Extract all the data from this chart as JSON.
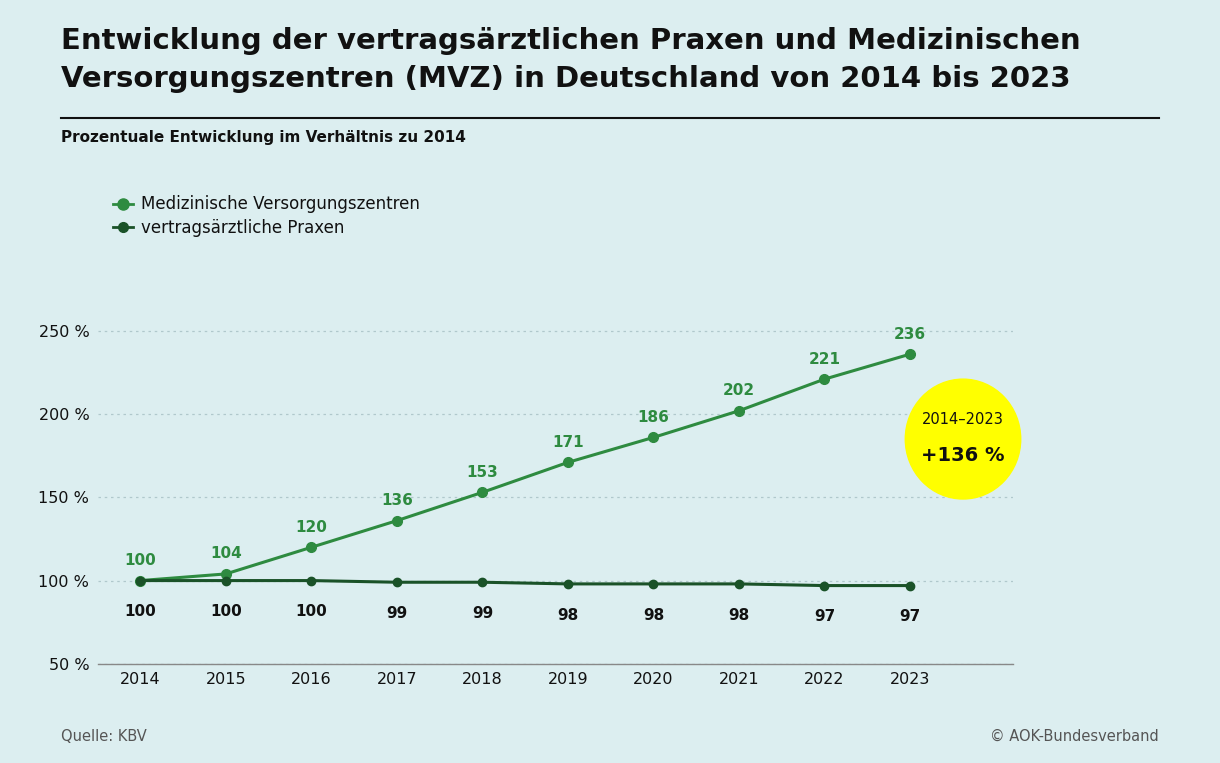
{
  "title_line1": "Entwicklung der vertragsärztlichen Praxen und Medizinischen",
  "title_line2": "Versorgungszentren (MVZ) in Deutschland von 2014 bis 2023",
  "subtitle": "Prozentuale Entwicklung im Verhältnis zu 2014",
  "years": [
    2014,
    2015,
    2016,
    2017,
    2018,
    2019,
    2020,
    2021,
    2022,
    2023
  ],
  "mvz_values": [
    100,
    104,
    120,
    136,
    153,
    171,
    186,
    202,
    221,
    236
  ],
  "praxen_values": [
    100,
    100,
    100,
    99,
    99,
    98,
    98,
    98,
    97,
    97
  ],
  "mvz_color": "#2e8b40",
  "praxen_color": "#1a5228",
  "background_color": "#dceef0",
  "title_color": "#111111",
  "subtitle_color": "#111111",
  "grid_color": "#b0c8cc",
  "ylim": [
    50,
    270
  ],
  "yticks": [
    50,
    100,
    150,
    200,
    250
  ],
  "ytick_labels": [
    "50 %",
    "100 %",
    "150 %",
    "200 %",
    "250 %"
  ],
  "bubble_color": "#ffff00",
  "bubble_text1": "2014–2023",
  "bubble_text2": "+136 %",
  "source_left": "Quelle: KBV",
  "source_right": "© AOK-Bundesverband",
  "legend_mvz": "Medizinische Versorgungszentren",
  "legend_praxen": "vertragsärztliche Praxen",
  "line_width": 2.2,
  "marker_size_mvz": 7,
  "marker_size_praxen": 6
}
